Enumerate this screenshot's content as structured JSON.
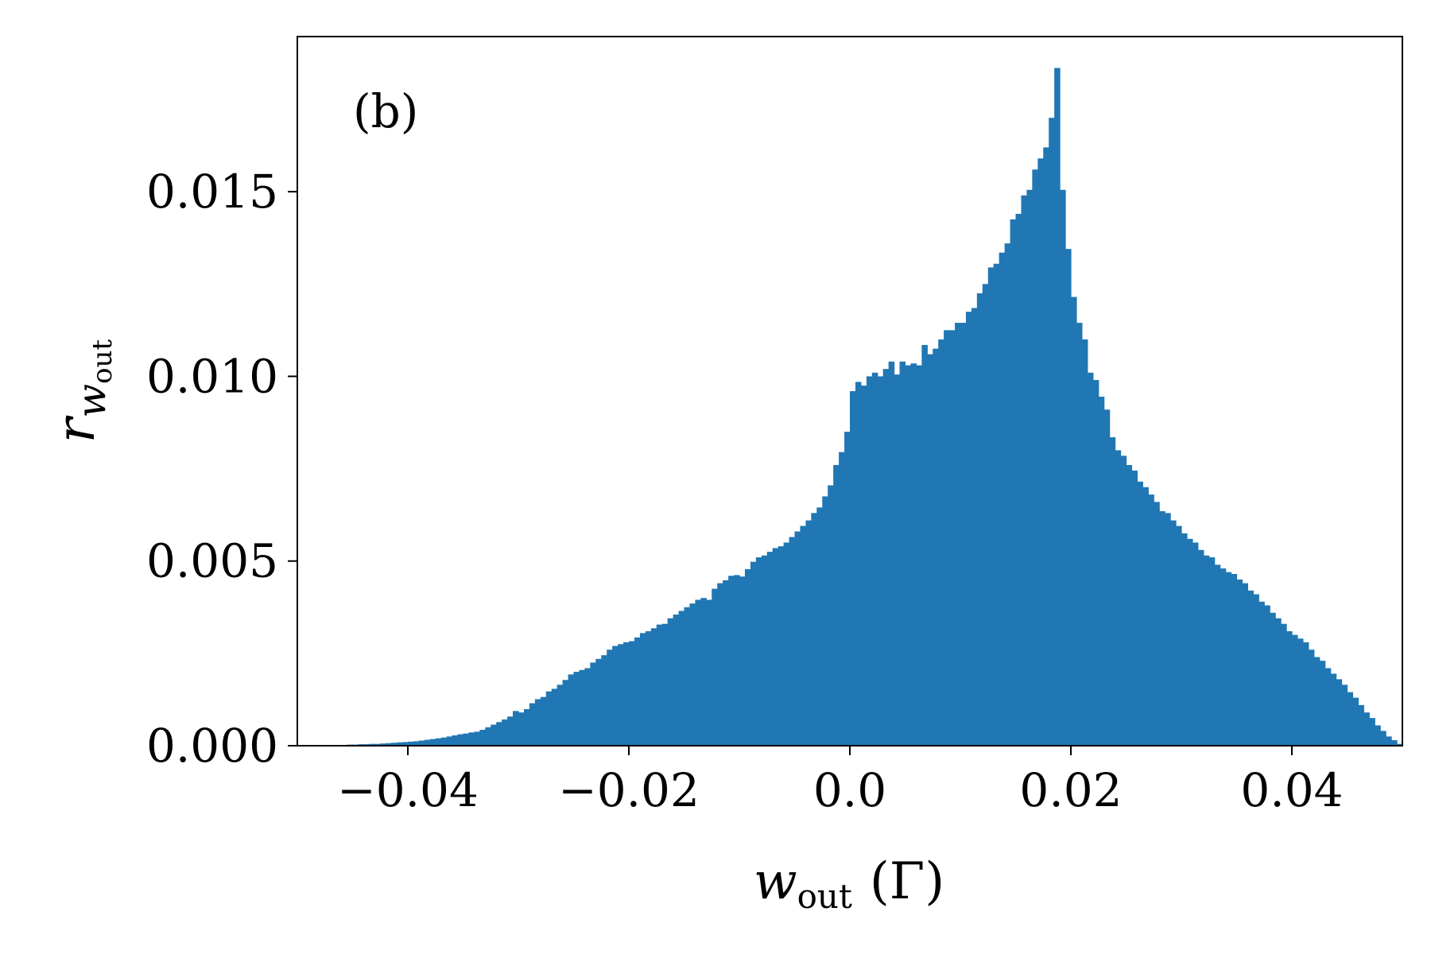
{
  "chart_data": {
    "type": "bar",
    "histogram": true,
    "bin_width": 0.0005,
    "annotation": "(b)",
    "xlabel": {
      "main": "w",
      "sub": "out",
      "unit": "(Γ)"
    },
    "ylabel": {
      "main": "r",
      "sub_main": "w",
      "sub_sub": "out"
    },
    "xlim": [
      -0.05,
      0.05
    ],
    "ylim": [
      0,
      0.0192
    ],
    "xticks": [
      {
        "value": -0.04,
        "label": "−0.04"
      },
      {
        "value": -0.02,
        "label": "−0.02"
      },
      {
        "value": 0.0,
        "label": "0.0"
      },
      {
        "value": 0.02,
        "label": "0.02"
      },
      {
        "value": 0.04,
        "label": "0.04"
      }
    ],
    "yticks": [
      {
        "value": 0.0,
        "label": "0.000"
      },
      {
        "value": 0.005,
        "label": "0.005"
      },
      {
        "value": 0.01,
        "label": "0.010"
      },
      {
        "value": 0.015,
        "label": "0.015"
      }
    ],
    "grid": false,
    "bar_color": "#2077b4",
    "bins": [
      {
        "x": -0.047,
        "y": 1e-05
      },
      {
        "x": -0.0465,
        "y": 2e-05
      },
      {
        "x": -0.046,
        "y": 2e-05
      },
      {
        "x": -0.0455,
        "y": 3e-05
      },
      {
        "x": -0.045,
        "y": 3e-05
      },
      {
        "x": -0.0445,
        "y": 4e-05
      },
      {
        "x": -0.044,
        "y": 4e-05
      },
      {
        "x": -0.0435,
        "y": 5e-05
      },
      {
        "x": -0.043,
        "y": 5e-05
      },
      {
        "x": -0.0425,
        "y": 6e-05
      },
      {
        "x": -0.042,
        "y": 7e-05
      },
      {
        "x": -0.0415,
        "y": 8e-05
      },
      {
        "x": -0.041,
        "y": 9e-05
      },
      {
        "x": -0.0405,
        "y": 0.0001
      },
      {
        "x": -0.04,
        "y": 0.00011
      },
      {
        "x": -0.0395,
        "y": 0.00012
      },
      {
        "x": -0.039,
        "y": 0.00014
      },
      {
        "x": -0.0385,
        "y": 0.00016
      },
      {
        "x": -0.038,
        "y": 0.00018
      },
      {
        "x": -0.0375,
        "y": 0.0002
      },
      {
        "x": -0.037,
        "y": 0.00022
      },
      {
        "x": -0.0365,
        "y": 0.00025
      },
      {
        "x": -0.036,
        "y": 0.00028
      },
      {
        "x": -0.0355,
        "y": 0.00031
      },
      {
        "x": -0.035,
        "y": 0.00033
      },
      {
        "x": -0.0345,
        "y": 0.00036
      },
      {
        "x": -0.034,
        "y": 0.00038
      },
      {
        "x": -0.0335,
        "y": 0.00043
      },
      {
        "x": -0.033,
        "y": 0.0005
      },
      {
        "x": -0.0325,
        "y": 0.00057
      },
      {
        "x": -0.032,
        "y": 0.00064
      },
      {
        "x": -0.0315,
        "y": 0.00071
      },
      {
        "x": -0.031,
        "y": 0.00079
      },
      {
        "x": -0.0305,
        "y": 0.00094
      },
      {
        "x": -0.03,
        "y": 0.0009
      },
      {
        "x": -0.0295,
        "y": 0.00099
      },
      {
        "x": -0.029,
        "y": 0.00115
      },
      {
        "x": -0.0285,
        "y": 0.00126
      },
      {
        "x": -0.028,
        "y": 0.00132
      },
      {
        "x": -0.0275,
        "y": 0.00147
      },
      {
        "x": -0.027,
        "y": 0.00154
      },
      {
        "x": -0.0265,
        "y": 0.00165
      },
      {
        "x": -0.026,
        "y": 0.00178
      },
      {
        "x": -0.0255,
        "y": 0.00193
      },
      {
        "x": -0.025,
        "y": 0.002
      },
      {
        "x": -0.0245,
        "y": 0.00205
      },
      {
        "x": -0.024,
        "y": 0.0021
      },
      {
        "x": -0.0235,
        "y": 0.00225
      },
      {
        "x": -0.023,
        "y": 0.00235
      },
      {
        "x": -0.0225,
        "y": 0.00245
      },
      {
        "x": -0.022,
        "y": 0.0026
      },
      {
        "x": -0.0215,
        "y": 0.0027
      },
      {
        "x": -0.021,
        "y": 0.00275
      },
      {
        "x": -0.0205,
        "y": 0.0028
      },
      {
        "x": -0.02,
        "y": 0.00283
      },
      {
        "x": -0.0195,
        "y": 0.00293
      },
      {
        "x": -0.019,
        "y": 0.00305
      },
      {
        "x": -0.0185,
        "y": 0.0031
      },
      {
        "x": -0.018,
        "y": 0.00318
      },
      {
        "x": -0.0175,
        "y": 0.00328
      },
      {
        "x": -0.017,
        "y": 0.0033
      },
      {
        "x": -0.0165,
        "y": 0.00345
      },
      {
        "x": -0.016,
        "y": 0.00355
      },
      {
        "x": -0.0155,
        "y": 0.00365
      },
      {
        "x": -0.015,
        "y": 0.00375
      },
      {
        "x": -0.0145,
        "y": 0.00385
      },
      {
        "x": -0.014,
        "y": 0.00395
      },
      {
        "x": -0.0135,
        "y": 0.004
      },
      {
        "x": -0.013,
        "y": 0.00395
      },
      {
        "x": -0.0125,
        "y": 0.00425
      },
      {
        "x": -0.012,
        "y": 0.0044
      },
      {
        "x": -0.0115,
        "y": 0.00448
      },
      {
        "x": -0.011,
        "y": 0.0046
      },
      {
        "x": -0.0105,
        "y": 0.00462
      },
      {
        "x": -0.01,
        "y": 0.00458
      },
      {
        "x": -0.0095,
        "y": 0.00478
      },
      {
        "x": -0.009,
        "y": 0.00498
      },
      {
        "x": -0.0085,
        "y": 0.0051
      },
      {
        "x": -0.008,
        "y": 0.00515
      },
      {
        "x": -0.0075,
        "y": 0.00525
      },
      {
        "x": -0.007,
        "y": 0.00535
      },
      {
        "x": -0.0065,
        "y": 0.0054
      },
      {
        "x": -0.006,
        "y": 0.0055
      },
      {
        "x": -0.0055,
        "y": 0.00565
      },
      {
        "x": -0.005,
        "y": 0.0058
      },
      {
        "x": -0.0045,
        "y": 0.00595
      },
      {
        "x": -0.004,
        "y": 0.0061
      },
      {
        "x": -0.0035,
        "y": 0.0063
      },
      {
        "x": -0.003,
        "y": 0.00645
      },
      {
        "x": -0.0025,
        "y": 0.00675
      },
      {
        "x": -0.002,
        "y": 0.00705
      },
      {
        "x": -0.0015,
        "y": 0.0076
      },
      {
        "x": -0.001,
        "y": 0.00795
      },
      {
        "x": -0.0005,
        "y": 0.0085
      },
      {
        "x": 0.0,
        "y": 0.0096
      },
      {
        "x": 0.0005,
        "y": 0.00985
      },
      {
        "x": 0.001,
        "y": 0.00975
      },
      {
        "x": 0.0015,
        "y": 0.01
      },
      {
        "x": 0.002,
        "y": 0.0101
      },
      {
        "x": 0.0025,
        "y": 0.01
      },
      {
        "x": 0.003,
        "y": 0.0102
      },
      {
        "x": 0.0035,
        "y": 0.0104
      },
      {
        "x": 0.004,
        "y": 0.01005
      },
      {
        "x": 0.0045,
        "y": 0.0104
      },
      {
        "x": 0.005,
        "y": 0.0103
      },
      {
        "x": 0.0055,
        "y": 0.01035
      },
      {
        "x": 0.006,
        "y": 0.0103
      },
      {
        "x": 0.0065,
        "y": 0.01085
      },
      {
        "x": 0.007,
        "y": 0.0106
      },
      {
        "x": 0.0075,
        "y": 0.01075
      },
      {
        "x": 0.008,
        "y": 0.011
      },
      {
        "x": 0.0085,
        "y": 0.01125
      },
      {
        "x": 0.009,
        "y": 0.01125
      },
      {
        "x": 0.0095,
        "y": 0.01145
      },
      {
        "x": 0.01,
        "y": 0.01145
      },
      {
        "x": 0.0105,
        "y": 0.01175
      },
      {
        "x": 0.011,
        "y": 0.01185
      },
      {
        "x": 0.0115,
        "y": 0.01225
      },
      {
        "x": 0.012,
        "y": 0.0125
      },
      {
        "x": 0.0125,
        "y": 0.01295
      },
      {
        "x": 0.013,
        "y": 0.01305
      },
      {
        "x": 0.0135,
        "y": 0.01335
      },
      {
        "x": 0.014,
        "y": 0.0136
      },
      {
        "x": 0.0145,
        "y": 0.01425
      },
      {
        "x": 0.015,
        "y": 0.0144
      },
      {
        "x": 0.0155,
        "y": 0.0149
      },
      {
        "x": 0.016,
        "y": 0.01505
      },
      {
        "x": 0.0165,
        "y": 0.0156
      },
      {
        "x": 0.017,
        "y": 0.0159
      },
      {
        "x": 0.0175,
        "y": 0.0162
      },
      {
        "x": 0.018,
        "y": 0.017
      },
      {
        "x": 0.0185,
        "y": 0.01835
      },
      {
        "x": 0.019,
        "y": 0.01505
      },
      {
        "x": 0.0195,
        "y": 0.01345
      },
      {
        "x": 0.02,
        "y": 0.01215
      },
      {
        "x": 0.0205,
        "y": 0.01145
      },
      {
        "x": 0.021,
        "y": 0.011
      },
      {
        "x": 0.0215,
        "y": 0.0101
      },
      {
        "x": 0.022,
        "y": 0.0099
      },
      {
        "x": 0.0225,
        "y": 0.00945
      },
      {
        "x": 0.023,
        "y": 0.0091
      },
      {
        "x": 0.0235,
        "y": 0.00835
      },
      {
        "x": 0.024,
        "y": 0.008
      },
      {
        "x": 0.0245,
        "y": 0.00785
      },
      {
        "x": 0.025,
        "y": 0.0076
      },
      {
        "x": 0.0255,
        "y": 0.00745
      },
      {
        "x": 0.026,
        "y": 0.00715
      },
      {
        "x": 0.0265,
        "y": 0.007
      },
      {
        "x": 0.027,
        "y": 0.0068
      },
      {
        "x": 0.0275,
        "y": 0.0066
      },
      {
        "x": 0.028,
        "y": 0.00635
      },
      {
        "x": 0.0285,
        "y": 0.0063
      },
      {
        "x": 0.029,
        "y": 0.0061
      },
      {
        "x": 0.0295,
        "y": 0.00595
      },
      {
        "x": 0.03,
        "y": 0.00575
      },
      {
        "x": 0.0305,
        "y": 0.0056
      },
      {
        "x": 0.031,
        "y": 0.0055
      },
      {
        "x": 0.0315,
        "y": 0.0053
      },
      {
        "x": 0.032,
        "y": 0.00515
      },
      {
        "x": 0.0325,
        "y": 0.0051
      },
      {
        "x": 0.033,
        "y": 0.0049
      },
      {
        "x": 0.0335,
        "y": 0.0048
      },
      {
        "x": 0.034,
        "y": 0.0047
      },
      {
        "x": 0.0345,
        "y": 0.00465
      },
      {
        "x": 0.035,
        "y": 0.0045
      },
      {
        "x": 0.0355,
        "y": 0.0044
      },
      {
        "x": 0.036,
        "y": 0.0042
      },
      {
        "x": 0.0365,
        "y": 0.0041
      },
      {
        "x": 0.037,
        "y": 0.0039
      },
      {
        "x": 0.0375,
        "y": 0.0038
      },
      {
        "x": 0.038,
        "y": 0.0036
      },
      {
        "x": 0.0385,
        "y": 0.00345
      },
      {
        "x": 0.039,
        "y": 0.0033
      },
      {
        "x": 0.0395,
        "y": 0.0031
      },
      {
        "x": 0.04,
        "y": 0.003
      },
      {
        "x": 0.0405,
        "y": 0.0029
      },
      {
        "x": 0.041,
        "y": 0.0028
      },
      {
        "x": 0.0415,
        "y": 0.0026
      },
      {
        "x": 0.042,
        "y": 0.0024
      },
      {
        "x": 0.0425,
        "y": 0.0023
      },
      {
        "x": 0.043,
        "y": 0.0021
      },
      {
        "x": 0.0435,
        "y": 0.00195
      },
      {
        "x": 0.044,
        "y": 0.0018
      },
      {
        "x": 0.0445,
        "y": 0.00165
      },
      {
        "x": 0.045,
        "y": 0.00145
      },
      {
        "x": 0.0455,
        "y": 0.0013
      },
      {
        "x": 0.046,
        "y": 0.0011
      },
      {
        "x": 0.0465,
        "y": 0.0009
      },
      {
        "x": 0.047,
        "y": 0.00075
      },
      {
        "x": 0.0475,
        "y": 0.00055
      },
      {
        "x": 0.048,
        "y": 0.0004
      },
      {
        "x": 0.0485,
        "y": 0.00025
      },
      {
        "x": 0.049,
        "y": 0.00015
      },
      {
        "x": 0.0495,
        "y": 5e-05
      }
    ]
  }
}
